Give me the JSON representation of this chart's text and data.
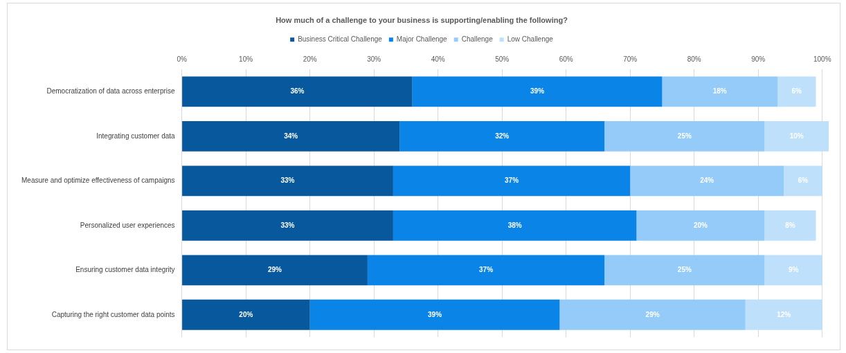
{
  "chart_data": {
    "type": "bar",
    "orientation": "horizontal",
    "stacked": true,
    "title": "How much of a challenge to your business is supporting/enabling the following?",
    "categories": [
      "Democratization of data across enterprise",
      "Integrating customer data",
      "Measure and optimize effectiveness of campaigns",
      "Personalized user experiences",
      "Ensuring customer data integrity",
      "Capturing the right customer data points"
    ],
    "series": [
      {
        "name": "Business Critical Challenge",
        "color": "#08589e",
        "values": [
          36,
          34,
          33,
          33,
          29,
          20
        ],
        "value_labels": [
          "36%",
          "34%",
          "33%",
          "33%",
          "29%",
          "20%"
        ]
      },
      {
        "name": "Major Challenge",
        "color": "#0b84e8",
        "values": [
          39,
          32,
          37,
          38,
          37,
          39
        ],
        "value_labels": [
          "39%",
          "32%",
          "37%",
          "38%",
          "37%",
          "39%"
        ]
      },
      {
        "name": "Challenge",
        "color": "#94cbf8",
        "values": [
          18,
          25,
          24,
          20,
          25,
          29
        ],
        "value_labels": [
          "18%",
          "25%",
          "24%",
          "20%",
          "25%",
          "29%"
        ]
      },
      {
        "name": "Low Challenge",
        "color": "#bfe0fb",
        "values": [
          6,
          10,
          6,
          8,
          9,
          12
        ],
        "value_labels": [
          "6%",
          "10%",
          "6%",
          "8%",
          "9%",
          "12%"
        ]
      }
    ],
    "xlim": [
      0,
      101
    ],
    "xticks": [
      {
        "value": 0,
        "label": "0%"
      },
      {
        "value": 10,
        "label": "10%"
      },
      {
        "value": 20,
        "label": "20%"
      },
      {
        "value": 30,
        "label": "30%"
      },
      {
        "value": 40,
        "label": "40%"
      },
      {
        "value": 50,
        "label": "50%"
      },
      {
        "value": 60,
        "label": "60%"
      },
      {
        "value": 70,
        "label": "70%"
      },
      {
        "value": 80,
        "label": "80%"
      },
      {
        "value": 90,
        "label": "90%"
      },
      {
        "value": 100,
        "label": "100%"
      }
    ],
    "grid": "x",
    "legend": "top"
  }
}
